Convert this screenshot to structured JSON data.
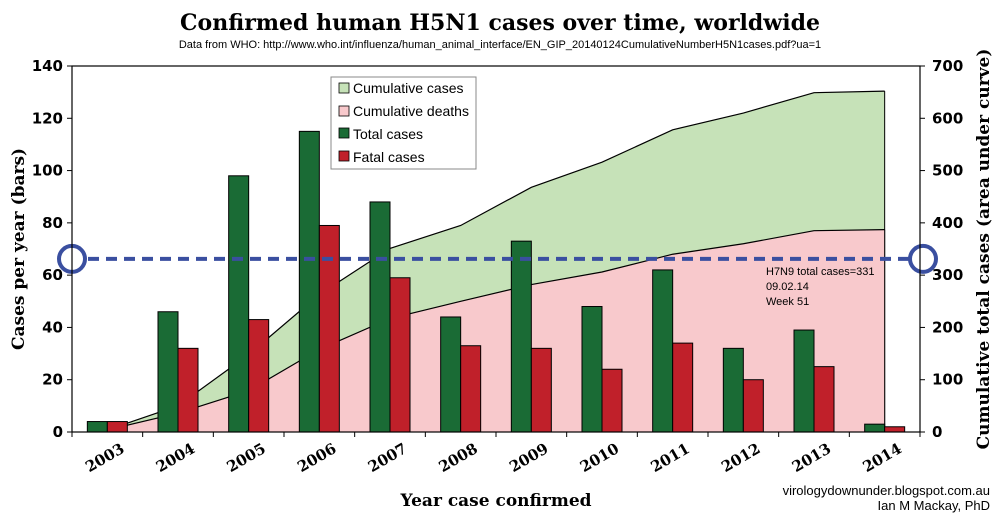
{
  "title": "Confirmed human H5N1 cases over time, worldwide",
  "subtitle": "Data from WHO: http://www.who.int/influenza/human_animal_interface/EN_GIP_20140124CumulativeNumberH5N1cases.pdf?ua=1",
  "credit": {
    "line1": "virologydownunder.blogspot.com.au",
    "line2": "Ian M Mackay, PhD"
  },
  "annotation": {
    "line1": "H7N9 total cases=331",
    "line2": "09.02.14",
    "line3": "Week 51"
  },
  "colors": {
    "total_cases": "#1a6b35",
    "fatal_cases": "#c0202a",
    "cumulative_cases": "#c6e2b8",
    "cumulative_deaths": "#f8c9cc",
    "h7n9_line": "#3a4fa0"
  },
  "chart_data": {
    "type": "bar",
    "title": "Confirmed human H5N1 cases over time, worldwide",
    "xlabel": "Year case confirmed",
    "ylabel": "Cases per year (bars)",
    "ylabel_right": "Cumulative total cases (area under curve)",
    "categories": [
      "2003",
      "2004",
      "2005",
      "2006",
      "2007",
      "2008",
      "2009",
      "2010",
      "2011",
      "2012",
      "2013",
      "2014"
    ],
    "ylim": [
      0,
      140
    ],
    "yticks": [
      0,
      20,
      40,
      60,
      80,
      100,
      120,
      140
    ],
    "ylim_right": [
      0,
      700
    ],
    "yticks_right": [
      0,
      100,
      200,
      300,
      400,
      500,
      600,
      700
    ],
    "grid": false,
    "legend_position": "top-center",
    "series": [
      {
        "name": "Total cases",
        "kind": "bar",
        "axis": "left",
        "color": "#1a6b35",
        "values": [
          4,
          46,
          98,
          115,
          88,
          44,
          73,
          48,
          62,
          32,
          39,
          3
        ]
      },
      {
        "name": "Fatal cases",
        "kind": "bar",
        "axis": "left",
        "color": "#c0202a",
        "values": [
          4,
          32,
          43,
          79,
          59,
          33,
          32,
          24,
          34,
          20,
          25,
          2
        ]
      },
      {
        "name": "Cumulative cases",
        "kind": "area",
        "axis": "right",
        "color": "#c6e2b8",
        "values": [
          4,
          50,
          148,
          263,
          351,
          395,
          468,
          516,
          578,
          610,
          649,
          652
        ]
      },
      {
        "name": "Cumulative deaths",
        "kind": "area",
        "axis": "right",
        "color": "#f8c9cc",
        "values": [
          4,
          36,
          79,
          158,
          217,
          250,
          282,
          306,
          340,
          360,
          385,
          387
        ]
      }
    ],
    "reference_line": {
      "axis": "right",
      "value": 331
    }
  }
}
